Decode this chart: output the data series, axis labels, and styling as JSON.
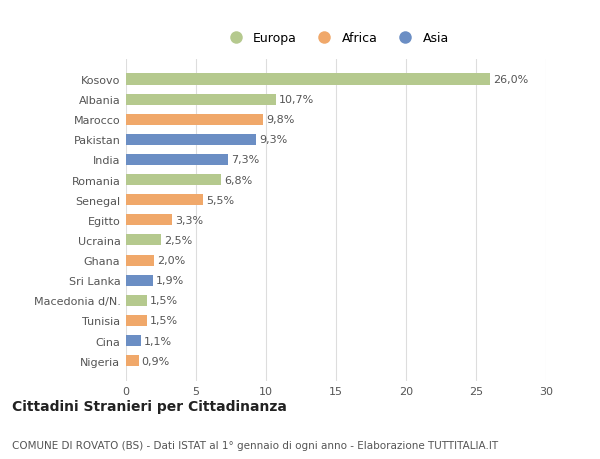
{
  "categories": [
    "Kosovo",
    "Albania",
    "Marocco",
    "Pakistan",
    "India",
    "Romania",
    "Senegal",
    "Egitto",
    "Ucraina",
    "Ghana",
    "Sri Lanka",
    "Macedonia d/N.",
    "Tunisia",
    "Cina",
    "Nigeria"
  ],
  "values": [
    26.0,
    10.7,
    9.8,
    9.3,
    7.3,
    6.8,
    5.5,
    3.3,
    2.5,
    2.0,
    1.9,
    1.5,
    1.5,
    1.1,
    0.9
  ],
  "labels": [
    "26,0%",
    "10,7%",
    "9,8%",
    "9,3%",
    "7,3%",
    "6,8%",
    "5,5%",
    "3,3%",
    "2,5%",
    "2,0%",
    "1,9%",
    "1,5%",
    "1,5%",
    "1,1%",
    "0,9%"
  ],
  "continents": [
    "Europa",
    "Europa",
    "Africa",
    "Asia",
    "Asia",
    "Europa",
    "Africa",
    "Africa",
    "Europa",
    "Africa",
    "Asia",
    "Europa",
    "Africa",
    "Asia",
    "Africa"
  ],
  "colors": {
    "Europa": "#b5c98e",
    "Africa": "#f0a86a",
    "Asia": "#6b8ec4"
  },
  "background_color": "#ffffff",
  "plot_bg_color": "#ffffff",
  "title": "Cittadini Stranieri per Cittadinanza",
  "subtitle": "COMUNE DI ROVATO (BS) - Dati ISTAT al 1° gennaio di ogni anno - Elaborazione TUTTITALIA.IT",
  "xlim": [
    0,
    30
  ],
  "xticks": [
    0,
    5,
    10,
    15,
    20,
    25,
    30
  ],
  "legend_labels": [
    "Europa",
    "Africa",
    "Asia"
  ],
  "bar_height": 0.55,
  "label_fontsize": 8,
  "ytick_fontsize": 8,
  "xtick_fontsize": 8,
  "title_fontsize": 10,
  "subtitle_fontsize": 7.5
}
